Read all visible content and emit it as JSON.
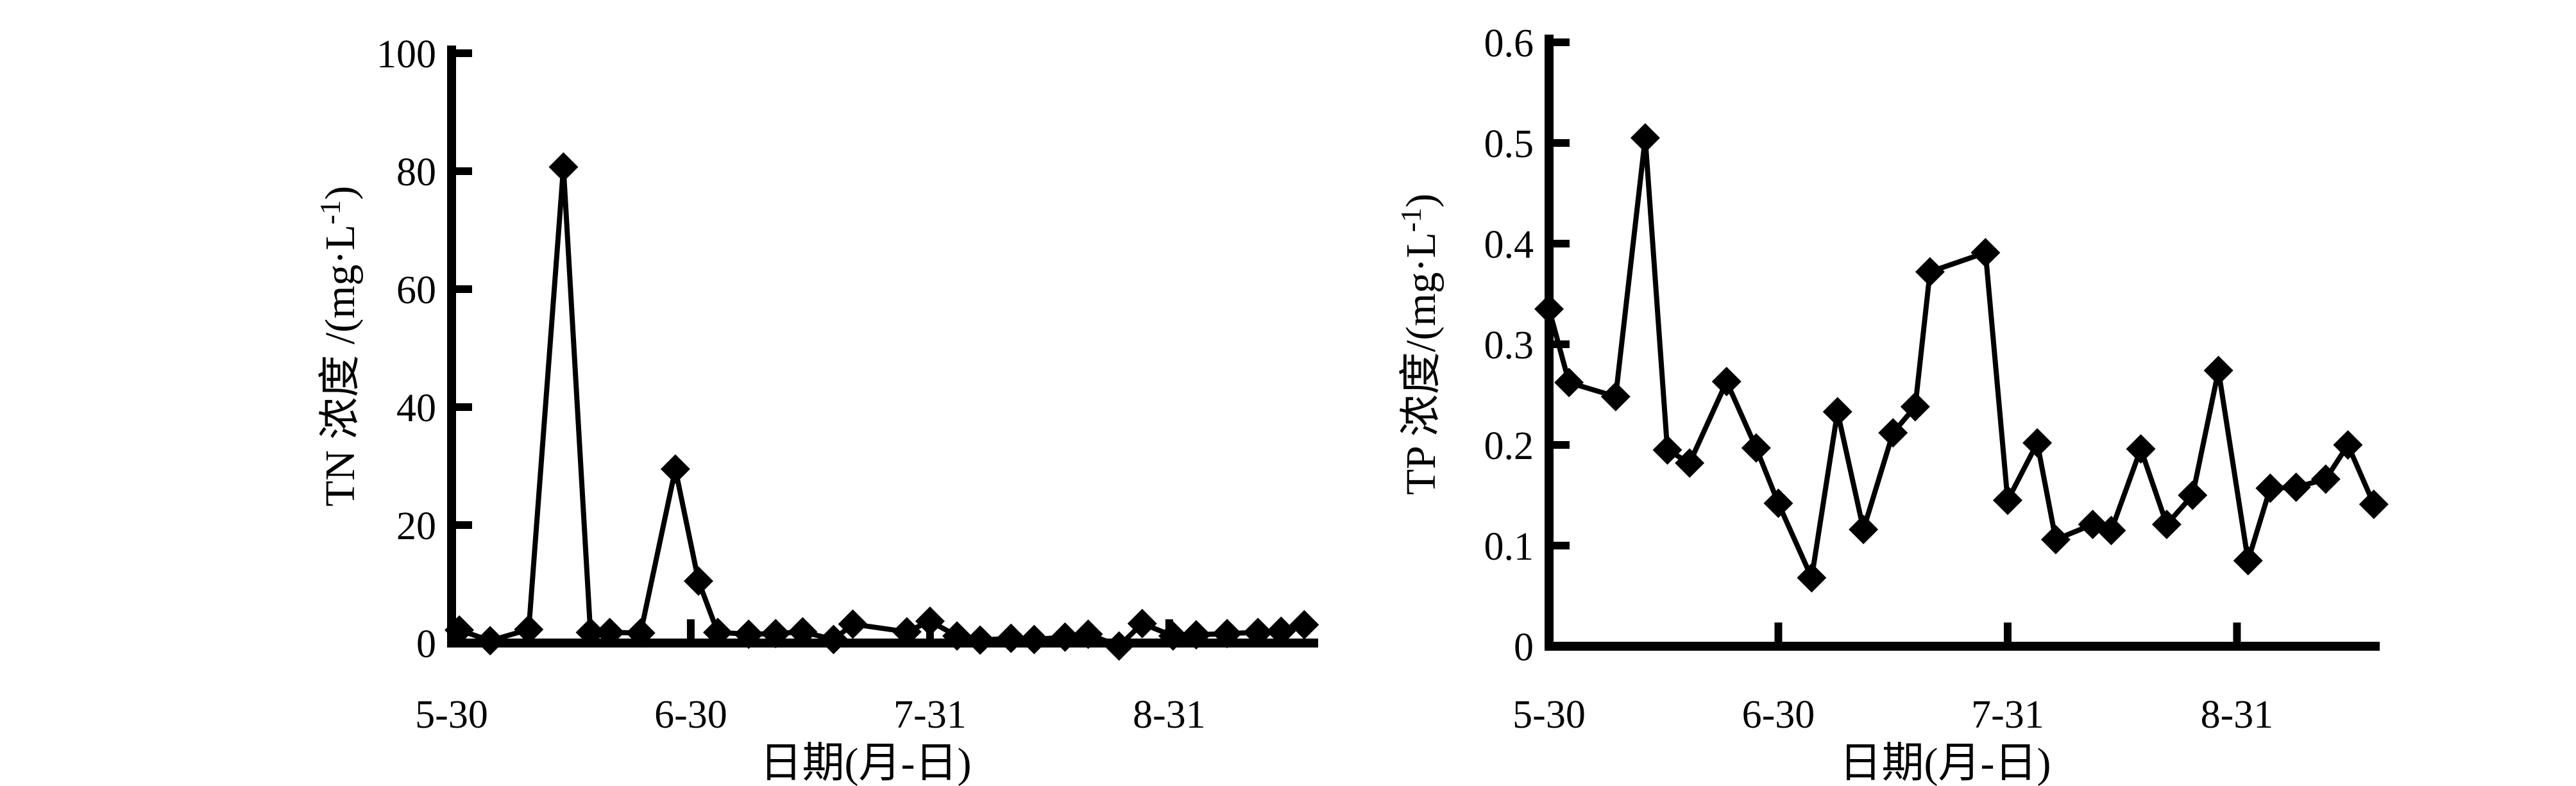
{
  "figure": {
    "background": "#ffffff",
    "foreground": "#000000",
    "panels": [
      "tn",
      "tp"
    ]
  },
  "chart_data": [
    {
      "id": "tn",
      "type": "line",
      "title": "",
      "xlabel": "日期(月-日)",
      "ylabel": "TN 浓度 /(mg·L⁻¹)",
      "ylabel_parts": {
        "main": "TN 浓度 /(mg·L",
        "sup": "-1",
        "close": ")"
      },
      "ylim": [
        0,
        100
      ],
      "ytick_values": [
        0,
        20,
        40,
        60,
        80,
        100
      ],
      "ytick_labels": [
        "0",
        "20",
        "40",
        "60",
        "80",
        "100"
      ],
      "xtick_days": [
        0,
        31,
        62,
        93
      ],
      "xtick_labels": [
        "5-30",
        "6-30",
        "7-31",
        "8-31"
      ],
      "x_axis_span_days": [
        0,
        112.3
      ],
      "grid": false,
      "legend": "none",
      "marker": "diamond",
      "line_color": "#000000",
      "x": [
        1,
        5,
        10,
        14.5,
        18,
        20.5,
        24.5,
        29,
        32,
        34.5,
        38.5,
        42,
        45.5,
        49.5,
        52,
        59,
        62,
        65.5,
        68.5,
        72.5,
        75.5,
        79.5,
        82.5,
        86.5,
        89.5,
        93.5,
        96.5,
        100.5,
        104.5,
        107.5,
        110.5
      ],
      "y": [
        2.2,
        0.4,
        2.3,
        80.7,
        1.8,
        1.8,
        1.7,
        29.5,
        10.5,
        1.8,
        1.5,
        1.6,
        1.9,
        0.6,
        3.2,
        1.9,
        3.7,
        1.2,
        0.5,
        0.8,
        0.6,
        1.0,
        1.5,
        -0.5,
        3.3,
        1.2,
        1.4,
        1.6,
        1.8,
        2.0,
        3.1
      ]
    },
    {
      "id": "tp",
      "type": "line",
      "title": "",
      "xlabel": "日期(月-日)",
      "ylabel": "TP 浓度/(mg·L⁻¹)",
      "ylabel_parts": {
        "main": "TP 浓度/(mg·L",
        "sup": "-1",
        "close": ")"
      },
      "ylim": [
        0,
        0.6
      ],
      "ytick_values": [
        0,
        0.1,
        0.2,
        0.3,
        0.4,
        0.5,
        0.6
      ],
      "ytick_labels": [
        "0",
        "0.1",
        "0.2",
        "0.3",
        "0.4",
        "0.5",
        "0.6"
      ],
      "xtick_days": [
        0,
        31,
        62,
        93
      ],
      "xtick_labels": [
        "5-30",
        "6-30",
        "7-31",
        "8-31"
      ],
      "x_axis_span_days": [
        0,
        112.3
      ],
      "grid": false,
      "legend": "none",
      "marker": "diamond",
      "line_color": "#000000",
      "x": [
        0,
        2.7,
        9,
        13,
        16,
        19,
        24,
        28,
        31,
        35.5,
        39,
        42.5,
        46.5,
        49.5,
        51.5,
        59,
        62,
        66,
        68.5,
        73.5,
        76,
        80,
        83.5,
        87,
        90.5,
        94.5,
        97.5,
        101,
        105,
        108,
        111.5
      ],
      "y": [
        0.335,
        0.262,
        0.248,
        0.505,
        0.195,
        0.182,
        0.263,
        0.197,
        0.142,
        0.068,
        0.233,
        0.116,
        0.212,
        0.238,
        0.372,
        0.391,
        0.145,
        0.202,
        0.106,
        0.121,
        0.115,
        0.196,
        0.121,
        0.15,
        0.274,
        0.085,
        0.157,
        0.158,
        0.166,
        0.2,
        0.141
      ]
    }
  ]
}
